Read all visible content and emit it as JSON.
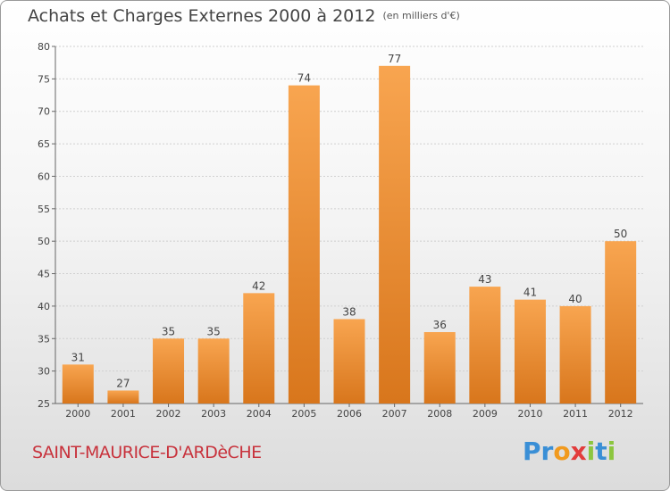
{
  "header": {
    "title": "Achats et Charges Externes 2000 à 2012",
    "unit": "(en milliers d'€)"
  },
  "footer": {
    "city": "SAINT-MAURICE-D'ARDèCHE",
    "logo_letters": [
      "P",
      "r",
      "o",
      "x",
      "i",
      "t",
      "i"
    ],
    "logo_colors": [
      "#3a8fd6",
      "#3a8fd6",
      "#f19a1e",
      "#e23c3c",
      "#8cc63f",
      "#3a8fd6",
      "#8cc63f"
    ]
  },
  "colors": {
    "bar_light": "#f8a550",
    "bar_dark": "#d8761c",
    "city": "#c8323c"
  },
  "chart_data": {
    "type": "bar",
    "categories": [
      "2000",
      "2001",
      "2002",
      "2003",
      "2004",
      "2005",
      "2006",
      "2007",
      "2008",
      "2009",
      "2010",
      "2011",
      "2012"
    ],
    "values": [
      31,
      27,
      35,
      35,
      42,
      74,
      38,
      77,
      36,
      43,
      41,
      40,
      50
    ],
    "title": "Achats et Charges Externes 2000 à 2012",
    "ylim": [
      25,
      80
    ],
    "yticks": [
      25,
      30,
      35,
      40,
      45,
      50,
      55,
      60,
      65,
      70,
      75,
      80
    ],
    "grid": true
  }
}
